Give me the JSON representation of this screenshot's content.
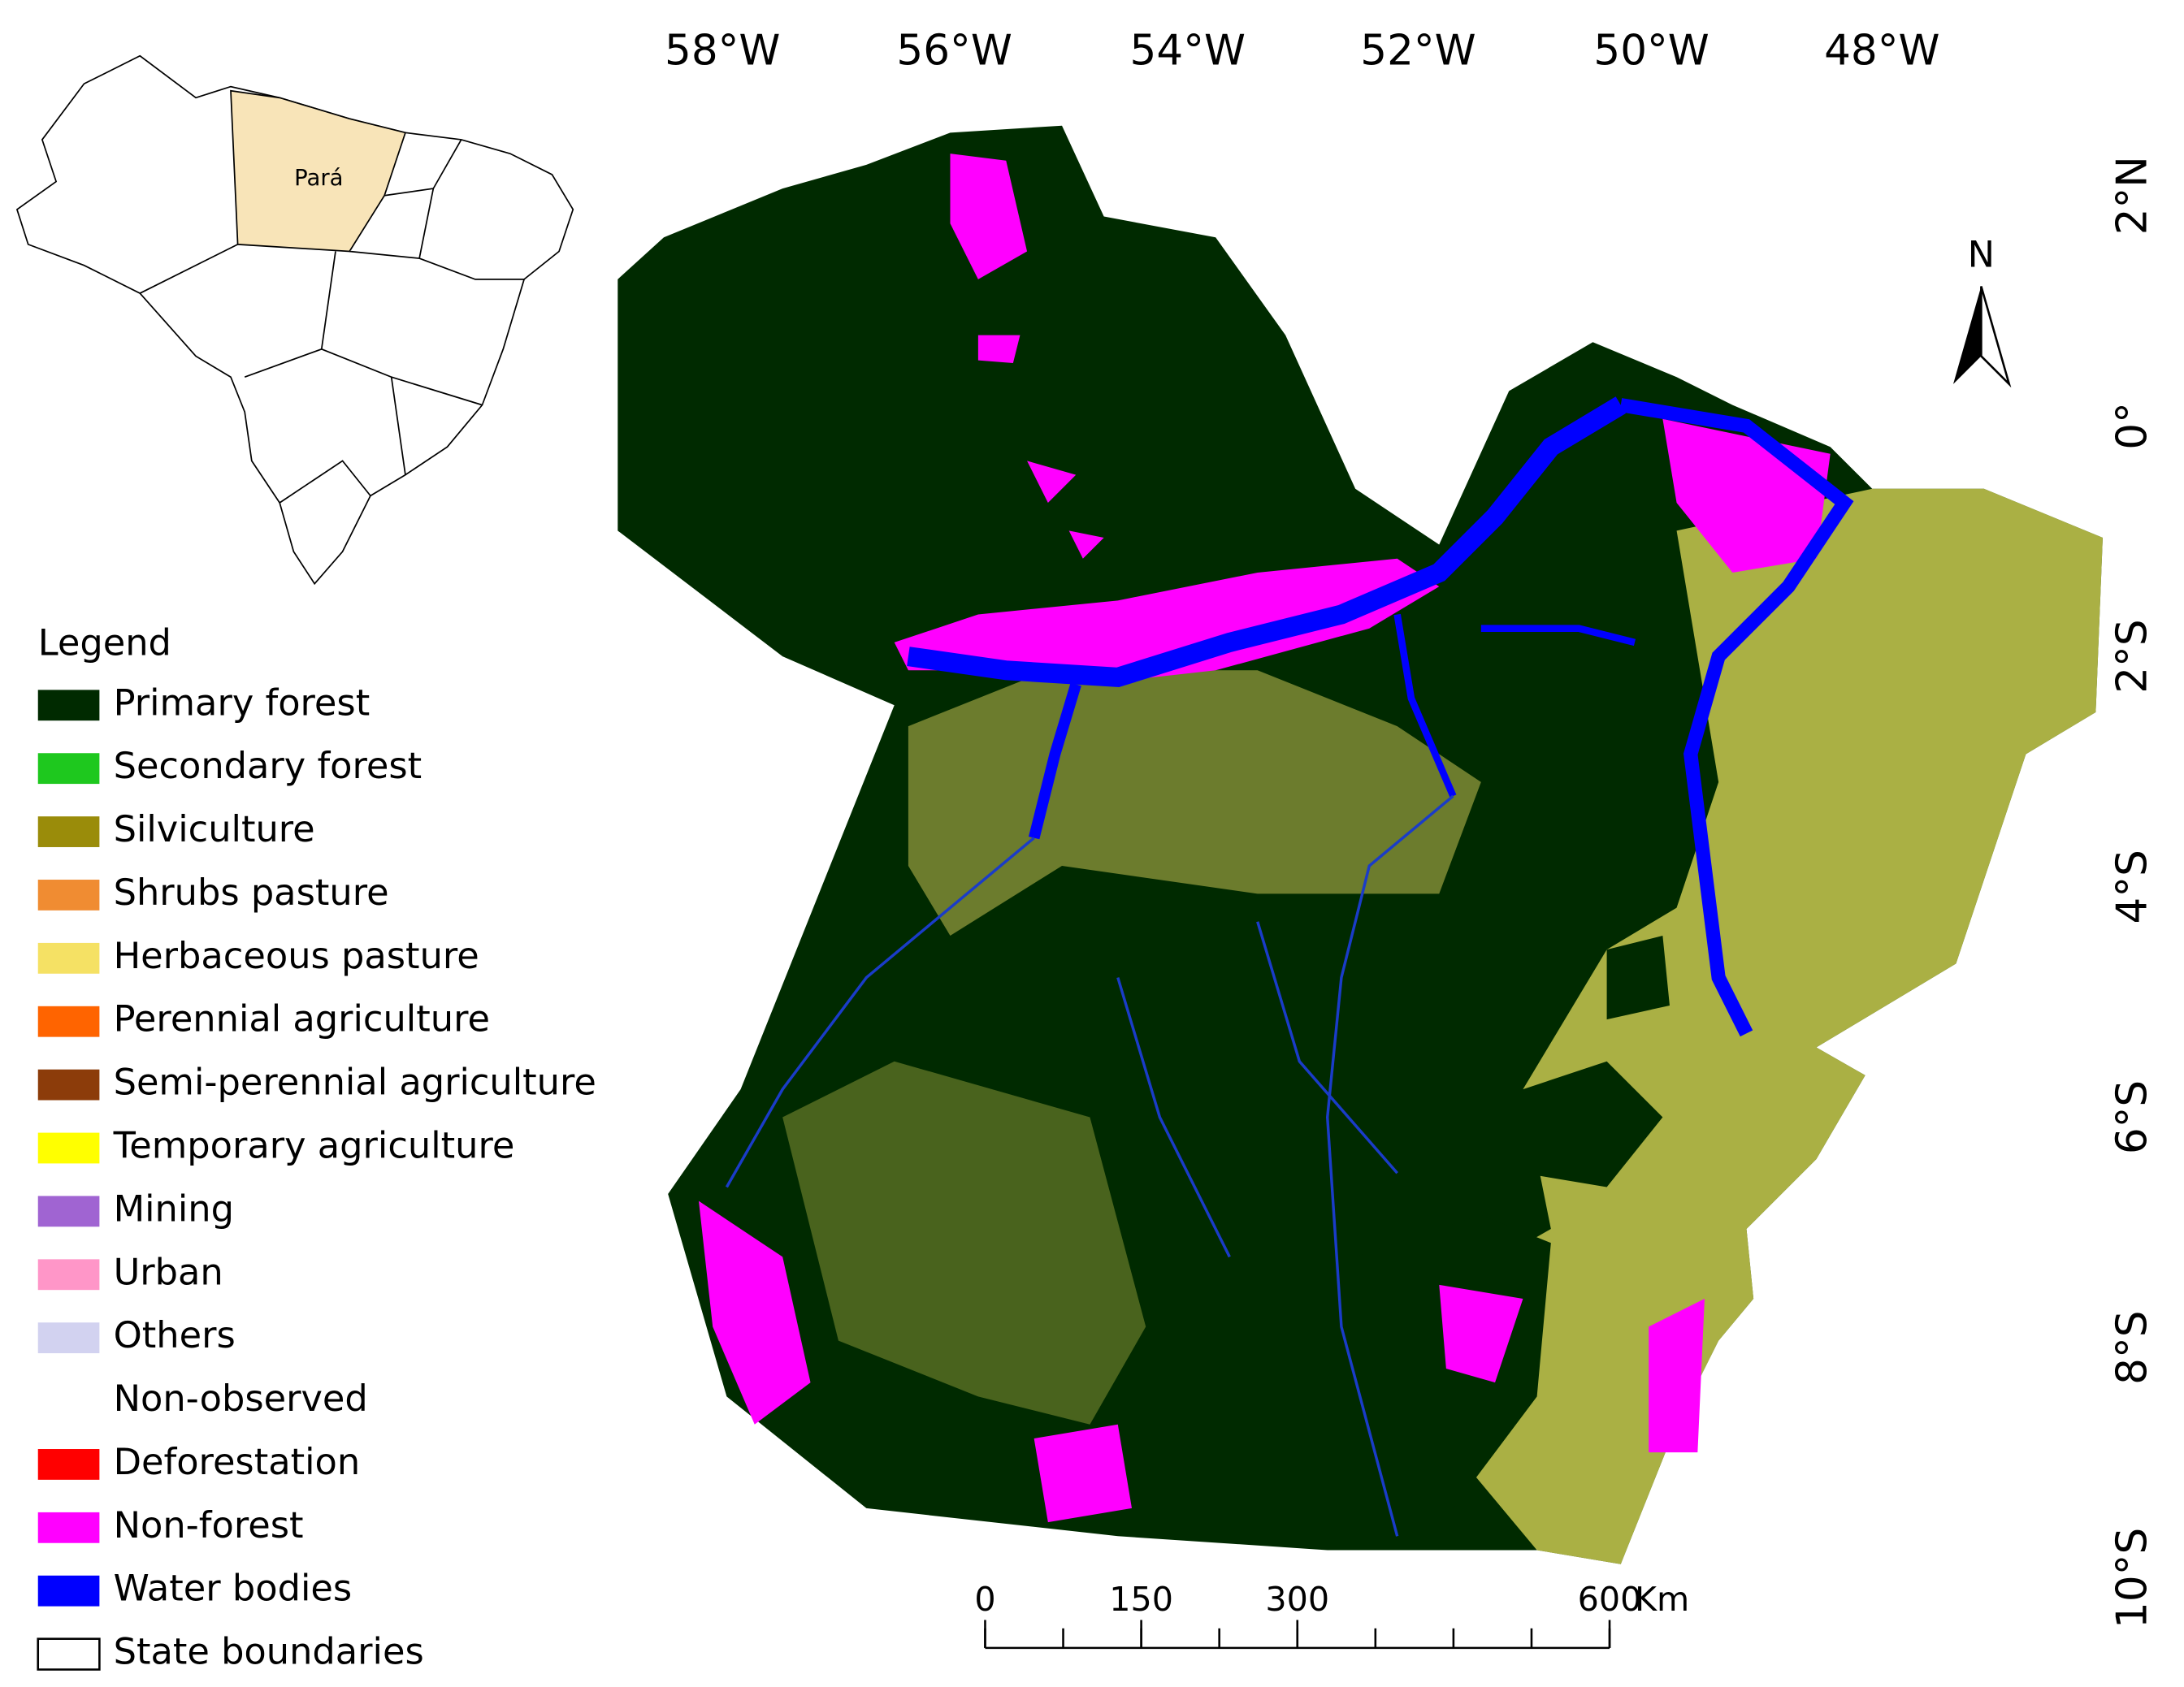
{
  "inset": {
    "label": "Pará"
  },
  "longitudes": [
    "58°W",
    "56°W",
    "54°W",
    "52°W",
    "50°W",
    "48°W"
  ],
  "latitudes": [
    "2°N",
    "0°",
    "2°S",
    "4°S",
    "6°S",
    "8°S",
    "10°S"
  ],
  "north_arrow": "N",
  "legend": {
    "title": "Legend",
    "items": [
      {
        "label": "Primary forest",
        "color": "#002a00"
      },
      {
        "label": "Secondary forest",
        "color": "#1ec81e"
      },
      {
        "label": "Silviculture",
        "color": "#9a8c0a"
      },
      {
        "label": "Shrubs pasture",
        "color": "#f08c32"
      },
      {
        "label": "Herbaceous pasture",
        "color": "#f5e164"
      },
      {
        "label": "Perennial agriculture",
        "color": "#ff6400"
      },
      {
        "label": "Semi-perennial agriculture",
        "color": "#8c3c0a"
      },
      {
        "label": "Temporary agriculture",
        "color": "#ffff00"
      },
      {
        "label": "Mining",
        "color": "#a064d2"
      },
      {
        "label": "Urban",
        "color": "#ff96c8"
      },
      {
        "label": "Others",
        "color": "#d2d2f0"
      },
      {
        "label": "Non-observed",
        "color": "#ffffff"
      },
      {
        "label": "Deforestation",
        "color": "#ff0000"
      },
      {
        "label": "Non-forest",
        "color": "#ff00ff"
      },
      {
        "label": "Water bodies",
        "color": "#0000ff"
      },
      {
        "label": "State boundaries",
        "color": "#ffffff",
        "stroke": "#000000"
      }
    ]
  },
  "scale_bar": {
    "labels": [
      0,
      150,
      300,
      600
    ],
    "unit": "Km"
  }
}
